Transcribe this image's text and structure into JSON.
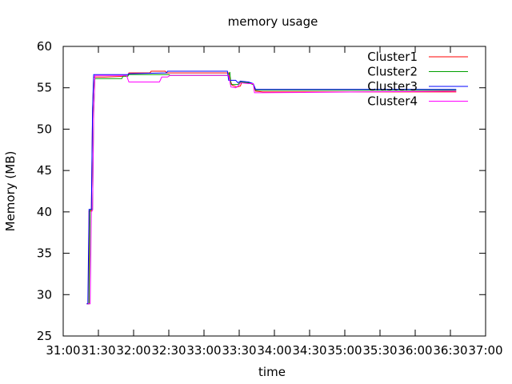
{
  "chart_data": {
    "type": "line",
    "title": "memory usage",
    "xlabel": "time",
    "ylabel": "Memory (MB)",
    "xlim": [
      "31:00",
      "37:00"
    ],
    "ylim": [
      25,
      60
    ],
    "x_ticks": [
      "31:00",
      "31:30",
      "32:00",
      "32:30",
      "33:00",
      "33:30",
      "34:00",
      "34:30",
      "35:00",
      "35:30",
      "36:00",
      "36:30",
      "37:00"
    ],
    "y_ticks": [
      25,
      30,
      35,
      40,
      45,
      50,
      55,
      60
    ],
    "grid": false,
    "legend": "top-right",
    "series": [
      {
        "name": "Cluster1",
        "color": "#ff0000",
        "points": [
          [
            "31:20",
            28.9
          ],
          [
            "31:22",
            28.9
          ],
          [
            "31:22",
            40.1
          ],
          [
            "31:24",
            40.1
          ],
          [
            "31:25",
            52.0
          ],
          [
            "31:26",
            56.3
          ],
          [
            "31:35",
            56.3
          ],
          [
            "31:55",
            56.4
          ],
          [
            "31:56",
            56.8
          ],
          [
            "32:14",
            56.8
          ],
          [
            "32:15",
            57.0
          ],
          [
            "32:27",
            57.0
          ],
          [
            "32:28",
            56.8
          ],
          [
            "33:21",
            56.8
          ],
          [
            "33:22",
            56.0
          ],
          [
            "33:24",
            55.3
          ],
          [
            "33:28",
            55.1
          ],
          [
            "33:31",
            55.2
          ],
          [
            "33:32",
            55.6
          ],
          [
            "33:38",
            55.6
          ],
          [
            "33:42",
            55.4
          ],
          [
            "33:44",
            54.6
          ],
          [
            "33:50",
            54.5
          ],
          [
            "36:35",
            54.5
          ]
        ]
      },
      {
        "name": "Cluster2",
        "color": "#00a000",
        "points": [
          [
            "31:21",
            28.9
          ],
          [
            "31:22",
            28.9
          ],
          [
            "31:23",
            40.3
          ],
          [
            "31:25",
            40.3
          ],
          [
            "31:26",
            52.0
          ],
          [
            "31:27",
            56.1
          ],
          [
            "31:50",
            56.1
          ],
          [
            "31:51",
            56.4
          ],
          [
            "31:55",
            56.4
          ],
          [
            "31:56",
            56.6
          ],
          [
            "32:30",
            56.6
          ],
          [
            "32:31",
            56.5
          ],
          [
            "33:21",
            56.5
          ],
          [
            "33:22",
            56.9
          ],
          [
            "33:23",
            55.4
          ],
          [
            "33:29",
            55.4
          ],
          [
            "33:31",
            55.7
          ],
          [
            "33:38",
            55.6
          ],
          [
            "33:42",
            55.4
          ],
          [
            "33:44",
            54.7
          ],
          [
            "33:52",
            54.7
          ],
          [
            "36:35",
            54.7
          ]
        ]
      },
      {
        "name": "Cluster3",
        "color": "#0000ff",
        "points": [
          [
            "31:20",
            28.9
          ],
          [
            "31:21",
            28.9
          ],
          [
            "31:22",
            40.3
          ],
          [
            "31:24",
            40.3
          ],
          [
            "31:25",
            52.5
          ],
          [
            "31:26",
            56.6
          ],
          [
            "31:35",
            56.6
          ],
          [
            "31:55",
            56.6
          ],
          [
            "31:56",
            56.7
          ],
          [
            "32:28",
            56.8
          ],
          [
            "32:29",
            57.0
          ],
          [
            "33:20",
            57.0
          ],
          [
            "33:21",
            55.9
          ],
          [
            "33:27",
            55.9
          ],
          [
            "33:29",
            55.6
          ],
          [
            "33:31",
            55.8
          ],
          [
            "33:38",
            55.7
          ],
          [
            "33:42",
            55.5
          ],
          [
            "33:44",
            54.8
          ],
          [
            "36:35",
            54.8
          ]
        ]
      },
      {
        "name": "Cluster4",
        "color": "#ff00ff",
        "points": [
          [
            "31:21",
            28.9
          ],
          [
            "31:23",
            28.9
          ],
          [
            "31:24",
            40.0
          ],
          [
            "31:25",
            40.2
          ],
          [
            "31:26",
            52.0
          ],
          [
            "31:27",
            56.5
          ],
          [
            "31:50",
            56.5
          ],
          [
            "31:54",
            56.5
          ],
          [
            "31:56",
            55.7
          ],
          [
            "32:22",
            55.7
          ],
          [
            "32:24",
            56.3
          ],
          [
            "32:29",
            56.3
          ],
          [
            "32:31",
            56.5
          ],
          [
            "33:21",
            56.5
          ],
          [
            "33:23",
            55.1
          ],
          [
            "33:27",
            55.0
          ],
          [
            "33:29",
            55.2
          ],
          [
            "33:31",
            55.6
          ],
          [
            "33:38",
            55.5
          ],
          [
            "33:42",
            55.5
          ],
          [
            "33:43",
            54.4
          ],
          [
            "33:50",
            54.4
          ],
          [
            "36:35",
            54.6
          ]
        ]
      }
    ]
  }
}
